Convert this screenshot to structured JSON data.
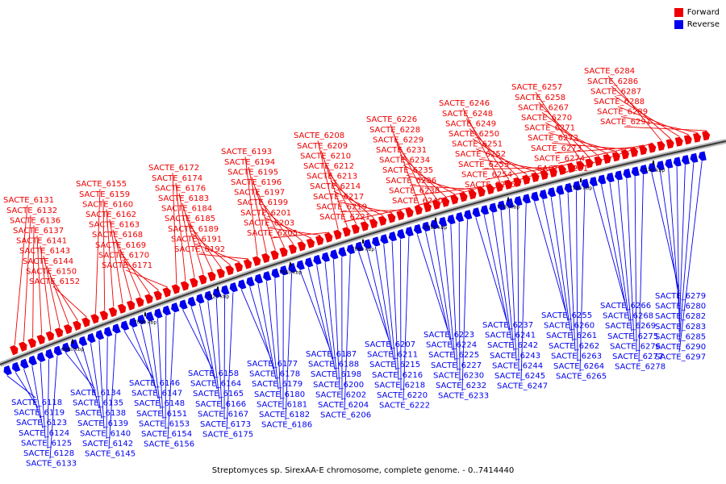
{
  "legend": {
    "forward_label": "Forward",
    "reverse_label": "Reverse",
    "forward_color": "#ee0000",
    "reverse_color": "#0000ee"
  },
  "caption": "Streptomyces sp. SirexAA-E chromosome, complete genome. - 0..7414440",
  "kbp_ticks": [
    "6980 kbp",
    "7000 kbp",
    "7020 kbp",
    "7040 kbp",
    "7060 kbp",
    "7080 kbp",
    "7100 kbp",
    "7120 kbp",
    "7140 kbp"
  ],
  "forward_genes": [
    "SACTE_6131",
    "SACTE_6132",
    "SACTE_6136",
    "SACTE_6137",
    "SACTE_6141",
    "SACTE_6143",
    "SACTE_6144",
    "SACTE_6150",
    "SACTE_6152",
    "SACTE_6155",
    "SACTE_6159",
    "SACTE_6160",
    "SACTE_6162",
    "SACTE_6163",
    "SACTE_6168",
    "SACTE_6169",
    "SACTE_6170",
    "SACTE_6171",
    "SACTE_6172",
    "SACTE_6174",
    "SACTE_6176",
    "SACTE_6183",
    "SACTE_6184",
    "SACTE_6185",
    "SACTE_6189",
    "SACTE_6191",
    "SACTE_6192",
    "SACTE_6193",
    "SACTE_6194",
    "SACTE_6195",
    "SACTE_6196",
    "SACTE_6197",
    "SACTE_6199",
    "SACTE_6201",
    "SACTE_6203",
    "SACTE_6205",
    "SACTE_6208",
    "SACTE_6209",
    "SACTE_6210",
    "SACTE_6212",
    "SACTE_6213",
    "SACTE_6214",
    "SACTE_6217",
    "SACTE_6219",
    "SACTE_6221",
    "SACTE_6226",
    "SACTE_6228",
    "SACTE_6229",
    "SACTE_6231",
    "SACTE_6234",
    "SACTE_6235",
    "SACTE_6236",
    "SACTE_6238",
    "SACTE_6240",
    "SACTE_6246",
    "SACTE_6248",
    "SACTE_6249",
    "SACTE_6250",
    "SACTE_6251",
    "SACTE_6252",
    "SACTE_6253",
    "SACTE_6254",
    "SACTE_6256",
    "SACTE_6257",
    "SACTE_6258",
    "SACTE_6267",
    "SACTE_6270",
    "SACTE_6271",
    "SACTE_6272",
    "SACTE_6273",
    "SACTE_6274",
    "SACTE_6281",
    "SACTE_6284",
    "SACTE_6286",
    "SACTE_6287",
    "SACTE_6288",
    "SACTE_6289",
    "SACTE_6291"
  ],
  "reverse_genes": [
    "SACTE_6118",
    "SACTE_6119",
    "SACTE_6123",
    "SACTE_6124",
    "SACTE_6125",
    "SACTE_6128",
    "SACTE_6133",
    "SACTE_6134",
    "SACTE_6135",
    "SACTE_6138",
    "SACTE_6139",
    "SACTE_6140",
    "SACTE_6142",
    "SACTE_6145",
    "SACTE_6146",
    "SACTE_6147",
    "SACTE_6148",
    "SACTE_6151",
    "SACTE_6153",
    "SACTE_6154",
    "SACTE_6156",
    "SACTE_6158",
    "SACTE_6164",
    "SACTE_6165",
    "SACTE_6166",
    "SACTE_6167",
    "SACTE_6173",
    "SACTE_6175",
    "SACTE_6177",
    "SACTE_6178",
    "SACTE_6179",
    "SACTE_6180",
    "SACTE_6181",
    "SACTE_6182",
    "SACTE_6186",
    "SACTE_6187",
    "SACTE_6188",
    "SACTE_6198",
    "SACTE_6200",
    "SACTE_6202",
    "SACTE_6204",
    "SACTE_6206",
    "SACTE_6207",
    "SACTE_6211",
    "SACTE_6215",
    "SACTE_6216",
    "SACTE_6218",
    "SACTE_6220",
    "SACTE_6222",
    "SACTE_6223",
    "SACTE_6224",
    "SACTE_6225",
    "SACTE_6227",
    "SACTE_6230",
    "SACTE_6232",
    "SACTE_6233",
    "SACTE_6237",
    "SACTE_6241",
    "SACTE_6242",
    "SACTE_6243",
    "SACTE_6244",
    "SACTE_6245",
    "SACTE_6247",
    "SACTE_6255",
    "SACTE_6260",
    "SACTE_6261",
    "SACTE_6262",
    "SACTE_6263",
    "SACTE_6264",
    "SACTE_6265",
    "SACTE_6266",
    "SACTE_6268",
    "SACTE_6269",
    "SACTE_6275",
    "SACTE_6276",
    "SACTE_6277",
    "SACTE_6278",
    "SACTE_6279",
    "SACTE_6280",
    "SACTE_6282",
    "SACTE_6283",
    "SACTE_6285",
    "SACTE_6290",
    "SACTE_6297"
  ]
}
